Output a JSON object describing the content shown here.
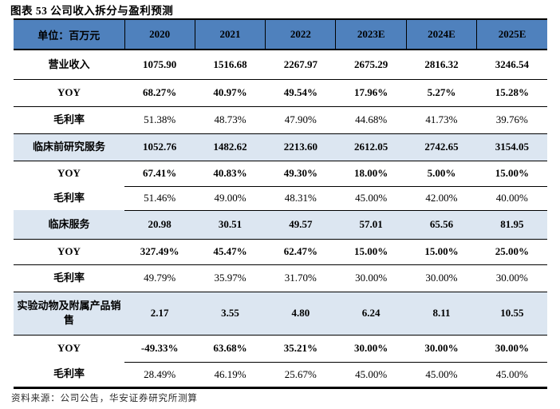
{
  "title": "图表 53 公司收入拆分与盈利预测",
  "source": "资料来源：公司公告，华安证券研究所测算",
  "colors": {
    "header_bg": "#4f81bd",
    "section_bg": "#dce6f1",
    "border": "#000000"
  },
  "table": {
    "unit_label": "单位：百万元",
    "columns": [
      "2020",
      "2021",
      "2022",
      "2023E",
      "2024E",
      "2025E"
    ],
    "rows": [
      {
        "label": "营业收入",
        "values": [
          "1075.90",
          "1516.68",
          "2267.97",
          "2675.29",
          "2816.32",
          "3246.54"
        ],
        "bold_values": true,
        "section": false,
        "partial_top": false
      },
      {
        "label": "YOY",
        "values": [
          "68.27%",
          "40.97%",
          "49.54%",
          "17.96%",
          "5.27%",
          "15.28%"
        ],
        "bold_values": true,
        "section": false,
        "partial_top": false
      },
      {
        "label": "毛利率",
        "values": [
          "51.38%",
          "48.73%",
          "47.90%",
          "44.68%",
          "41.73%",
          "39.76%"
        ],
        "bold_values": false,
        "section": false,
        "partial_top": false
      },
      {
        "label": "临床前研究服务",
        "values": [
          "1052.76",
          "1482.62",
          "2213.60",
          "2612.05",
          "2742.65",
          "3154.05"
        ],
        "bold_values": true,
        "section": true,
        "partial_top": false
      },
      {
        "label": "YOY",
        "values": [
          "67.41%",
          "40.83%",
          "49.30%",
          "18.00%",
          "5.00%",
          "15.00%"
        ],
        "bold_values": true,
        "section": false,
        "partial_top": false
      },
      {
        "label": "毛利率",
        "values": [
          "51.46%",
          "49.00%",
          "48.31%",
          "45.00%",
          "42.00%",
          "40.00%"
        ],
        "bold_values": false,
        "section": false,
        "partial_top": true
      },
      {
        "label": "临床服务",
        "values": [
          "20.98",
          "30.51",
          "49.57",
          "57.01",
          "65.56",
          "81.95"
        ],
        "bold_values": true,
        "section": true,
        "partial_top": true
      },
      {
        "label": "YOY",
        "values": [
          "327.49%",
          "45.47%",
          "62.47%",
          "15.00%",
          "15.00%",
          "25.00%"
        ],
        "bold_values": true,
        "section": false,
        "partial_top": false
      },
      {
        "label": "毛利率",
        "values": [
          "49.79%",
          "35.97%",
          "31.70%",
          "30.00%",
          "30.00%",
          "30.00%"
        ],
        "bold_values": false,
        "section": false,
        "partial_top": false
      },
      {
        "label": "实验动物及附属产品销售",
        "values": [
          "2.17",
          "3.55",
          "4.80",
          "6.24",
          "8.11",
          "10.55"
        ],
        "bold_values": true,
        "section": true,
        "partial_top": false
      },
      {
        "label": "YOY",
        "values": [
          "-49.33%",
          "63.68%",
          "35.21%",
          "30.00%",
          "30.00%",
          "30.00%"
        ],
        "bold_values": true,
        "section": false,
        "partial_top": false
      },
      {
        "label": "毛利率",
        "values": [
          "28.49%",
          "46.19%",
          "25.67%",
          "45.00%",
          "45.00%",
          "45.00%"
        ],
        "bold_values": false,
        "section": false,
        "partial_top": true
      }
    ]
  }
}
